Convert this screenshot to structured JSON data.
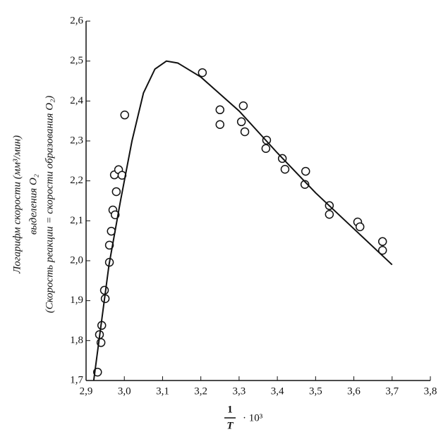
{
  "chart_data": {
    "type": "scatter",
    "y_label": [
      "Логарифм скорости (мм³/мин)",
      "выделения O₂",
      "(Скорость реакции = скорости образования O₂)"
    ],
    "x_label": {
      "numerator": "1",
      "denominator": "T",
      "factor": "· 10³"
    },
    "xlim": [
      2.9,
      3.8
    ],
    "ylim": [
      1.7,
      2.6
    ],
    "xticks": [
      {
        "value": 2.9,
        "label": "2,9"
      },
      {
        "value": 3.0,
        "label": "3,0"
      },
      {
        "value": 3.1,
        "label": "3,1"
      },
      {
        "value": 3.2,
        "label": "3,2"
      },
      {
        "value": 3.3,
        "label": "3,3"
      },
      {
        "value": 3.4,
        "label": "3,4"
      },
      {
        "value": 3.5,
        "label": "3,5"
      },
      {
        "value": 3.6,
        "label": "3,6"
      },
      {
        "value": 3.7,
        "label": "3,7"
      },
      {
        "value": 3.8,
        "label": "3,8"
      }
    ],
    "yticks": [
      {
        "value": 1.7,
        "label": "1,7"
      },
      {
        "value": 1.8,
        "label": "1,8"
      },
      {
        "value": 1.9,
        "label": "1,9"
      },
      {
        "value": 2.0,
        "label": "2,0"
      },
      {
        "value": 2.1,
        "label": "2,1"
      },
      {
        "value": 2.2,
        "label": "2,2"
      },
      {
        "value": 2.3,
        "label": "2,3"
      },
      {
        "value": 2.4,
        "label": "2,4"
      },
      {
        "value": 2.5,
        "label": "2,5"
      },
      {
        "value": 2.6,
        "label": "2,6"
      }
    ],
    "series": [
      {
        "style": "markers",
        "color": "#111111",
        "x": [
          2.93,
          2.935,
          2.939,
          2.941,
          2.948,
          2.95,
          2.961,
          2.961,
          2.966,
          2.97,
          2.976,
          2.974,
          2.979,
          2.985,
          2.994,
          3.001,
          3.204,
          3.25,
          3.25,
          3.306,
          3.311,
          3.315,
          3.372,
          3.37,
          3.413,
          3.42,
          3.474,
          3.472,
          3.536,
          3.536,
          3.61,
          3.616,
          3.675,
          3.675
        ],
        "values": [
          1.721,
          1.815,
          1.795,
          1.838,
          1.926,
          1.905,
          1.996,
          2.039,
          2.074,
          2.127,
          2.115,
          2.215,
          2.173,
          2.228,
          2.214,
          2.365,
          2.471,
          2.378,
          2.341,
          2.348,
          2.388,
          2.323,
          2.302,
          2.281,
          2.256,
          2.229,
          2.224,
          2.191,
          2.138,
          2.116,
          2.097,
          2.085,
          2.048,
          2.026
        ]
      },
      {
        "style": "line",
        "color": "#111111",
        "x": [
          2.92,
          2.96,
          2.99,
          3.02,
          3.05,
          3.08,
          3.11,
          3.14,
          3.2,
          3.3,
          3.4,
          3.5,
          3.6,
          3.7
        ],
        "values": [
          1.7,
          1.99,
          2.15,
          2.3,
          2.42,
          2.48,
          2.5,
          2.495,
          2.46,
          2.375,
          2.27,
          2.17,
          2.08,
          1.99
        ]
      }
    ]
  }
}
